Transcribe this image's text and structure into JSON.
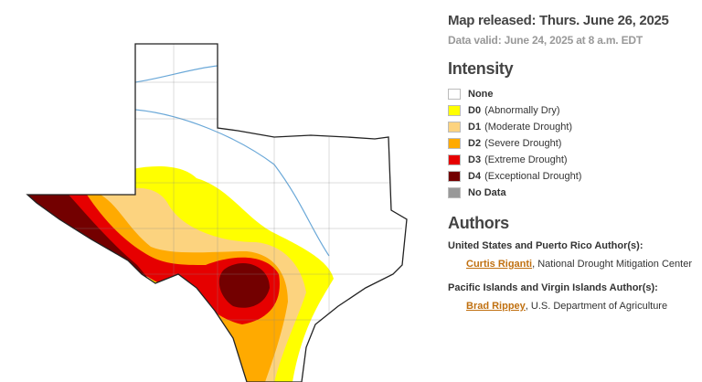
{
  "header": {
    "released": "Map released: Thurs. June 26, 2025",
    "valid": "Data valid: June 24, 2025 at 8 a.m. EDT"
  },
  "intensity": {
    "title": "Intensity",
    "items": [
      {
        "code": "None",
        "color": "#ffffff"
      },
      {
        "code": "D0",
        "desc": "(Abnormally Dry)",
        "color": "#ffff00"
      },
      {
        "code": "D1",
        "desc": "(Moderate Drought)",
        "color": "#fcd37f"
      },
      {
        "code": "D2",
        "desc": "(Severe Drought)",
        "color": "#ffaa00"
      },
      {
        "code": "D3",
        "desc": "(Extreme Drought)",
        "color": "#e60000"
      },
      {
        "code": "D4",
        "desc": "(Exceptional Drought)",
        "color": "#730000"
      },
      {
        "code": "No Data",
        "color": "#999999"
      }
    ]
  },
  "authors": {
    "title": "Authors",
    "groups": [
      {
        "heading": "United States and Puerto Rico Author(s):",
        "name": "Curtis Riganti",
        "affiliation": ", National Drought Mitigation Center"
      },
      {
        "heading": "Pacific Islands and Virgin Islands Author(s):",
        "name": "Brad Rippey",
        "affiliation": ", U.S. Department of Agriculture"
      }
    ]
  }
}
